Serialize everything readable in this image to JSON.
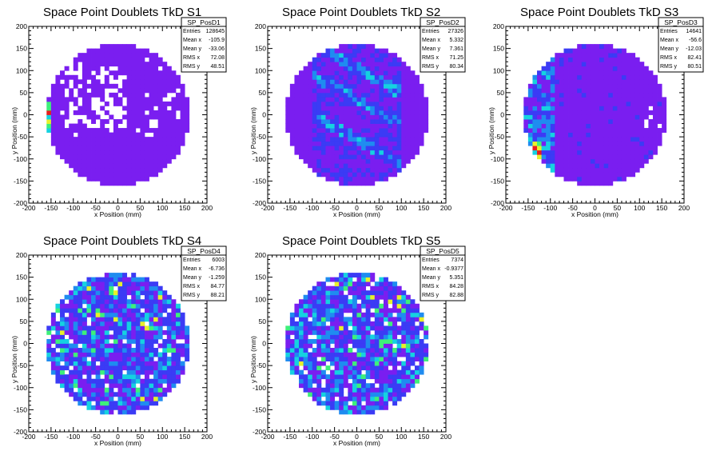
{
  "chart_data": [
    {
      "type": "heatmap",
      "title": "Space Point Doublets TkD S1",
      "xlabel": "x Position (mm)",
      "ylabel": "y Position (mm)",
      "xlim": [
        -200,
        200
      ],
      "ylim": [
        -200,
        200
      ],
      "xticks": [
        "-200",
        "-150",
        "-100",
        "-50",
        "0",
        "50",
        "100",
        "150",
        "200"
      ],
      "yticks": [
        "-200",
        "-150",
        "-100",
        "-50",
        "0",
        "50",
        "100",
        "150",
        "200"
      ],
      "disk_radius_mm": 160,
      "bin_width_mm": 10,
      "stats": {
        "name": "SP_PosD1",
        "rows": [
          [
            "Entries",
            "128645"
          ],
          [
            "Mean x",
            "-105.9"
          ],
          [
            "Mean y",
            "-33.06"
          ],
          [
            "RMS x",
            "72.08"
          ],
          [
            "RMS y",
            "48.51"
          ]
        ]
      },
      "pattern": "empty-cluster",
      "density_note": "uniform violet disk with many empty bins at upper-left, hot column at x=-160"
    },
    {
      "type": "heatmap",
      "title": "Space Point Doublets TkD S2",
      "xlabel": "x Position (mm)",
      "ylabel": "y Position (mm)",
      "xlim": [
        -200,
        200
      ],
      "ylim": [
        -200,
        200
      ],
      "xticks": [
        "-200",
        "-150",
        "-100",
        "-50",
        "0",
        "50",
        "100",
        "150",
        "200"
      ],
      "yticks": [
        "-200",
        "-150",
        "-100",
        "-50",
        "0",
        "50",
        "100",
        "150",
        "200"
      ],
      "disk_radius_mm": 160,
      "bin_width_mm": 10,
      "stats": {
        "name": "SP_PosD2",
        "rows": [
          [
            "Entries",
            "27326"
          ],
          [
            "Mean x",
            "5.332"
          ],
          [
            "Mean y",
            "7.361"
          ],
          [
            "RMS x",
            "71.25"
          ],
          [
            "RMS y",
            "80.34"
          ]
        ]
      },
      "pattern": "diagonal-bands",
      "density_note": "violet disk with blue diagonal bands between x=-100 and x=100"
    },
    {
      "type": "heatmap",
      "title": "Space Point Doublets TkD S3",
      "xlabel": "x Position (mm)",
      "ylabel": "y Position (mm)",
      "xlim": [
        -200,
        200
      ],
      "ylim": [
        -200,
        200
      ],
      "xticks": [
        "-200",
        "-150",
        "-100",
        "-50",
        "0",
        "50",
        "100",
        "150",
        "200"
      ],
      "yticks": [
        "-200",
        "-150",
        "-100",
        "-50",
        "0",
        "50",
        "100",
        "150",
        "200"
      ],
      "disk_radius_mm": 160,
      "bin_width_mm": 10,
      "stats": {
        "name": "SP_PosD3",
        "rows": [
          [
            "Entries",
            "14641"
          ],
          [
            "Mean x",
            "-56.6"
          ],
          [
            "Mean y",
            "-12.03"
          ],
          [
            "RMS x",
            "82.41"
          ],
          [
            "RMS y",
            "80.51"
          ]
        ]
      },
      "pattern": "left-edge",
      "density_note": "violet disk with blue/cyan/yellow hits concentrated in band x=-160..-100"
    },
    {
      "type": "heatmap",
      "title": "Space Point Doublets TkD S4",
      "xlabel": "x Position (mm)",
      "ylabel": "y Position (mm)",
      "xlim": [
        -200,
        200
      ],
      "ylim": [
        -200,
        200
      ],
      "xticks": [
        "-200",
        "-150",
        "-100",
        "-50",
        "0",
        "50",
        "100",
        "150",
        "200"
      ],
      "yticks": [
        "-200",
        "-150",
        "-100",
        "-50",
        "0",
        "50",
        "100",
        "150",
        "200"
      ],
      "disk_radius_mm": 160,
      "bin_width_mm": 10,
      "stats": {
        "name": "SP_PosD4",
        "rows": [
          [
            "Entries",
            "6003"
          ],
          [
            "Mean x",
            "-6.736"
          ],
          [
            "Mean y",
            "-1.259"
          ],
          [
            "RMS x",
            "84.77"
          ],
          [
            "RMS y",
            "88.21"
          ]
        ]
      },
      "pattern": "noisy",
      "density_note": "mixed blue/cyan/violet noisy disk with scattered empty bins"
    },
    {
      "type": "heatmap",
      "title": "Space Point Doublets TkD S5",
      "xlabel": "x Position (mm)",
      "ylabel": "y Position (mm)",
      "xlim": [
        -200,
        200
      ],
      "ylim": [
        -200,
        200
      ],
      "xticks": [
        "-200",
        "-150",
        "-100",
        "-50",
        "0",
        "50",
        "100",
        "150",
        "200"
      ],
      "yticks": [
        "-200",
        "-150",
        "-100",
        "-50",
        "0",
        "50",
        "100",
        "150",
        "200"
      ],
      "disk_radius_mm": 160,
      "bin_width_mm": 10,
      "stats": {
        "name": "SP_PosD5",
        "rows": [
          [
            "Entries",
            "7374"
          ],
          [
            "Mean x",
            "-0.9377"
          ],
          [
            "Mean y",
            "5.351"
          ],
          [
            "RMS x",
            "84.28"
          ],
          [
            "RMS y",
            "82.88"
          ]
        ]
      },
      "pattern": "noisy",
      "density_note": "mixed blue/cyan/green noisy disk with scattered empty bins"
    }
  ],
  "colors": {
    "violet": "#7a1ef0",
    "blue": "#3b3bf5",
    "lightblue": "#1f8cf0",
    "cyan": "#15d2e0",
    "green": "#3ef07a",
    "yellow": "#e8f02a",
    "red": "#e81e1e",
    "white": "#ffffff"
  }
}
